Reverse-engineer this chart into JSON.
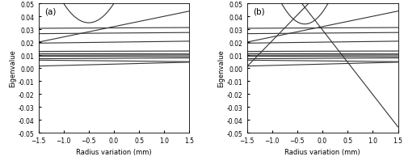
{
  "xlim": [
    -1.5,
    1.5
  ],
  "ylim": [
    -0.05,
    0.05
  ],
  "xlabel": "Radius variation (mm)",
  "ylabel": "Eigenvalue",
  "yticks": [
    -0.05,
    -0.04,
    -0.03,
    -0.02,
    -0.01,
    0,
    0.01,
    0.02,
    0.03,
    0.04,
    0.05
  ],
  "xticks": [
    -1.5,
    -1,
    -0.5,
    0,
    0.5,
    1,
    1.5
  ],
  "label_a": "(a)",
  "label_b": "(b)",
  "line_color": "#333333",
  "line_width": 0.8
}
